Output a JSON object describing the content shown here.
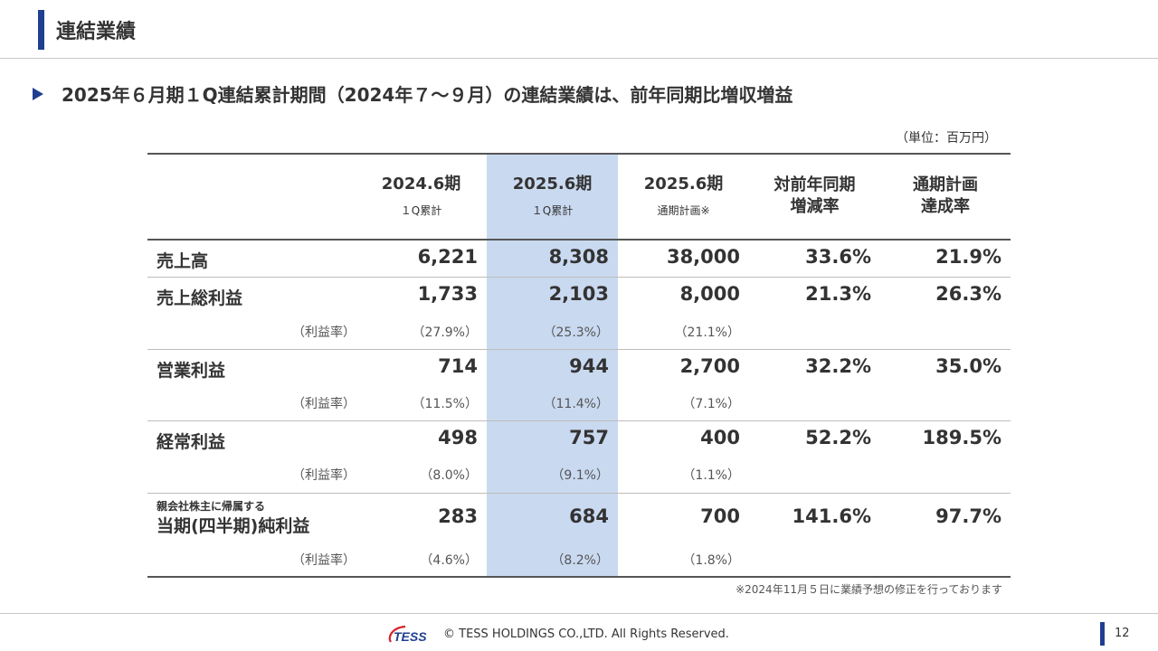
{
  "header": {
    "title": "連結業績"
  },
  "subtitle": "2025年６月期１Q連結累計期間（2024年７～９月）の連結業績は、前年同期比増収増益",
  "unit": "（単位：百万円）",
  "table": {
    "columns": [
      {
        "main": "2024.6期",
        "sub": "１Q累計"
      },
      {
        "main": "2025.6期",
        "sub": "１Q累計"
      },
      {
        "main": "2025.6期",
        "sub": "通期計画※"
      },
      {
        "main": "対前年同期\n増減率",
        "sub": ""
      },
      {
        "main": "通期計画\n達成率",
        "sub": ""
      }
    ],
    "rows": [
      {
        "label": "売上高",
        "values": [
          "6,221",
          "8,308",
          "38,000",
          "33.6%",
          "21.9%"
        ]
      },
      {
        "label": "売上総利益",
        "values": [
          "1,733",
          "2,103",
          "8,000",
          "21.3%",
          "26.3%"
        ],
        "ratio_label": "（利益率）",
        "ratios": [
          "（27.9%）",
          "（25.3%）",
          "（21.1%）"
        ]
      },
      {
        "label": "営業利益",
        "values": [
          "714",
          "944",
          "2,700",
          "32.2%",
          "35.0%"
        ],
        "ratio_label": "（利益率）",
        "ratios": [
          "（11.5%）",
          "（11.4%）",
          "（7.1%）"
        ]
      },
      {
        "label": "経常利益",
        "values": [
          "498",
          "757",
          "400",
          "52.2%",
          "189.5%"
        ],
        "ratio_label": "（利益率）",
        "ratios": [
          "（8.0%）",
          "（9.1%）",
          "（1.1%）"
        ]
      },
      {
        "label_small": "親会社株主に帰属する",
        "label": "当期(四半期)純利益",
        "values": [
          "283",
          "684",
          "700",
          "141.6%",
          "97.7%"
        ],
        "ratio_label": "（利益率）",
        "ratios": [
          "（4.6%）",
          "（8.2%）",
          "（1.8%）"
        ]
      }
    ]
  },
  "footnote": "※2024年11月５日に業績予想の修正を行っております",
  "footer": {
    "logo_text": "TESS",
    "copyright": "© TESS HOLDINGS CO.,LTD. All Rights Reserved.",
    "page_number": "12"
  },
  "colors": {
    "accent": "#1f3f8f",
    "highlight": "#c9d9f0",
    "logo_red": "#d7262e"
  }
}
